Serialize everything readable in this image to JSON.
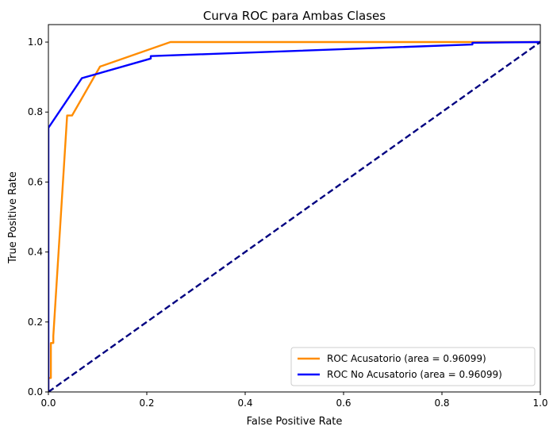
{
  "chart_data": {
    "type": "line",
    "title": "Curva ROC para Ambas Clases",
    "xlabel": "False Positive Rate",
    "ylabel": "True Positive Rate",
    "xlim": [
      0.0,
      1.0
    ],
    "ylim": [
      0.0,
      1.05
    ],
    "xticks": [
      "0.0",
      "0.2",
      "0.4",
      "0.6",
      "0.8",
      "1.0"
    ],
    "yticks": [
      "0.0",
      "0.2",
      "0.4",
      "0.6",
      "0.8",
      "1.0"
    ],
    "grid": false,
    "legend_position": "lower right",
    "series": [
      {
        "name": "ROC Acusatorio (area = 0.96099)",
        "color": "#ff8c00",
        "style": "solid",
        "x": [
          0.0,
          0.0,
          0.005,
          0.005,
          0.01,
          0.01,
          0.038,
          0.038,
          0.048,
          0.105,
          0.248,
          0.86,
          1.0
        ],
        "y": [
          0.0,
          0.04,
          0.04,
          0.14,
          0.14,
          0.16,
          0.79,
          0.79,
          0.79,
          0.93,
          1.0,
          1.0,
          1.0
        ]
      },
      {
        "name": "ROC No Acusatorio (area = 0.96099)",
        "color": "#0000ff",
        "style": "solid",
        "x": [
          0.0,
          0.0,
          0.068,
          0.208,
          0.208,
          0.862,
          0.862,
          1.0
        ],
        "y": [
          0.0,
          0.755,
          0.897,
          0.953,
          0.96,
          0.993,
          0.998,
          1.0
        ]
      },
      {
        "name": "",
        "color": "#000080",
        "style": "dashed",
        "x": [
          0.0,
          1.0
        ],
        "y": [
          0.0,
          1.0
        ]
      }
    ]
  }
}
